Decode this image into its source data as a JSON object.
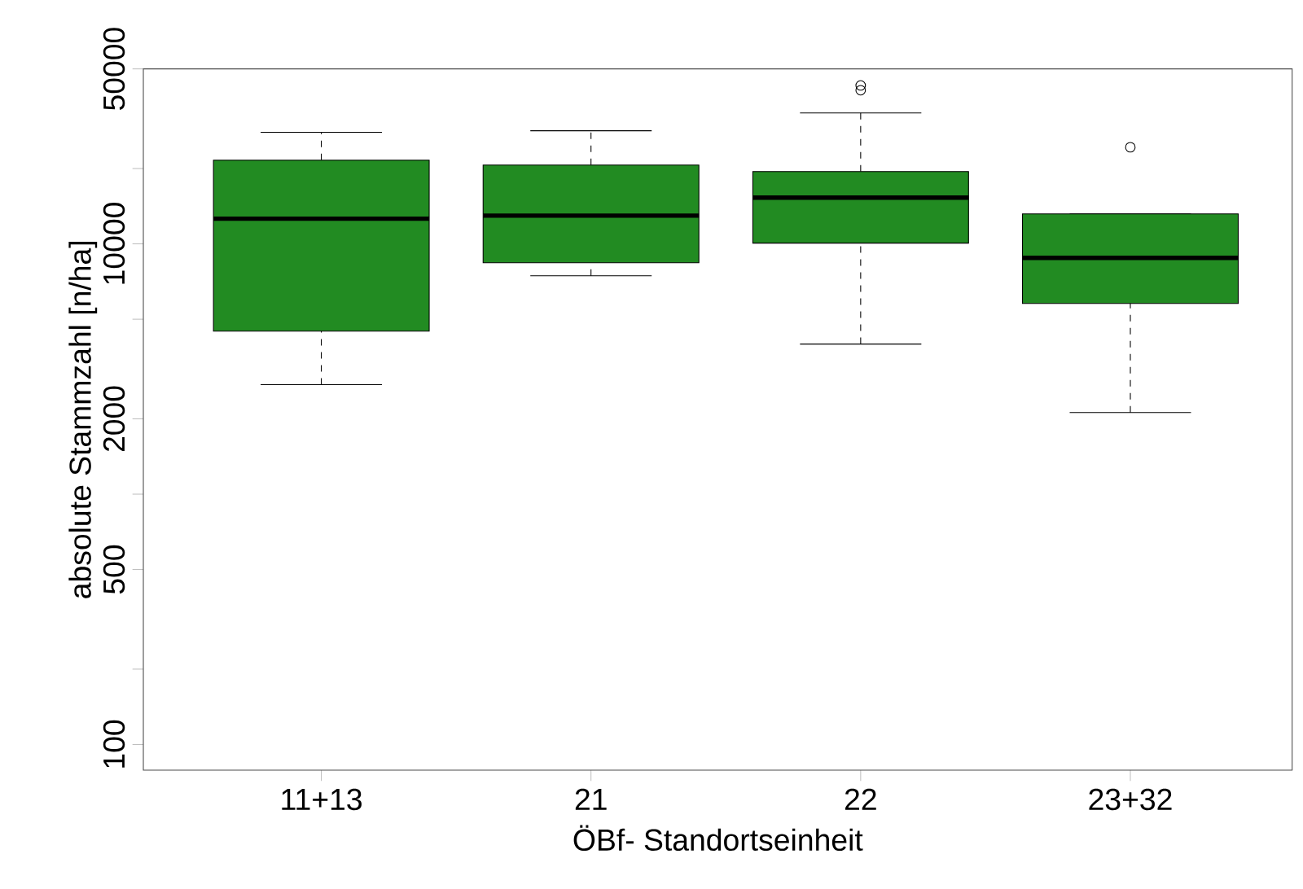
{
  "chart_data": {
    "type": "box",
    "xlabel": "ÖBf- Standortseinheit",
    "ylabel": "absolute Stammzahl [n/ha]",
    "categories": [
      "11+13",
      "21",
      "22",
      "23+32"
    ],
    "color": "#228b22",
    "boxes": [
      {
        "low": 2740,
        "q1": 4480,
        "median": 12600,
        "q3": 21600,
        "high": 27900
      },
      {
        "low": 7460,
        "q1": 8410,
        "median": 12970,
        "q3": 20650,
        "high": 28300
      },
      {
        "low": 3980,
        "q1": 10070,
        "median": 15300,
        "q3": 19460,
        "high": 33350,
        "outliers": [
          41100,
          42950
        ]
      },
      {
        "low": 2120,
        "q1": 5780,
        "median": 8790,
        "q3": 13180,
        "high": 13180,
        "outliers": [
          24320
        ]
      }
    ],
    "log": "y",
    "ylim": [
      79,
      50000
    ],
    "yticks": [
      100,
      {
        "value": 200,
        "label": null
      },
      500,
      {
        "value": 1000,
        "label": null
      },
      2000,
      {
        "value": 5000,
        "label": null
      },
      10000,
      {
        "value": 20000,
        "label": null
      },
      50000
    ]
  }
}
